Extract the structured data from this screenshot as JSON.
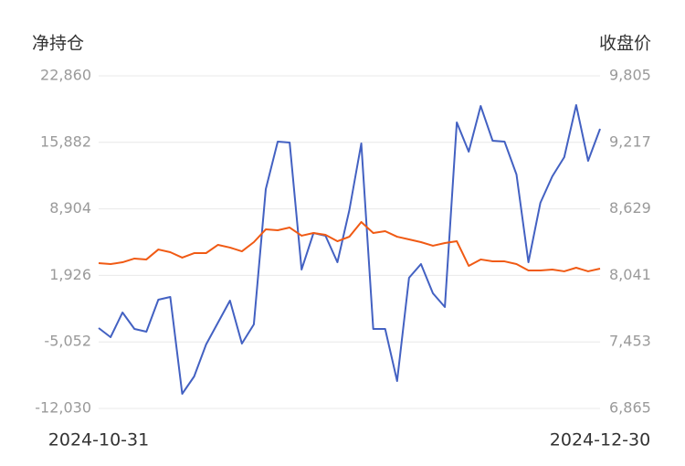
{
  "chart_data": {
    "type": "line",
    "y_label": "净持仓",
    "y2_label": "收盘价",
    "categories": [
      "2024-10-31",
      null,
      null,
      null,
      null,
      null,
      null,
      null,
      null,
      null,
      null,
      null,
      null,
      null,
      null,
      null,
      null,
      null,
      null,
      null,
      null,
      null,
      null,
      null,
      null,
      null,
      null,
      null,
      null,
      null,
      null,
      null,
      null,
      null,
      null,
      null,
      null,
      null,
      null,
      null,
      null,
      null,
      "2024-12-30"
    ],
    "series": [
      {
        "name": "净持仓",
        "color": "#4361c2",
        "axis": "y",
        "values": [
          -3595,
          -4553,
          -1965,
          -3690,
          -3978,
          -623,
          -336,
          -10496,
          -8675,
          -5320,
          -3020,
          -719,
          -5224,
          -3211,
          10975,
          15959,
          15863,
          2540,
          6374,
          6086,
          3307,
          8770,
          15767,
          -3690,
          -3690,
          -9154,
          1677,
          3115,
          48,
          -1390,
          17972,
          14904,
          19697,
          16055,
          15959,
          12508,
          3307,
          9537,
          12316,
          14329,
          19793,
          13946,
          17301
        ]
      },
      {
        "name": "收盘价",
        "color": "#f05a14",
        "axis": "y2",
        "values": [
          8149,
          8141,
          8157,
          8190,
          8182,
          8270,
          8246,
          8198,
          8238,
          8238,
          8311,
          8287,
          8254,
          8335,
          8448,
          8440,
          8464,
          8392,
          8416,
          8400,
          8343,
          8383,
          8513,
          8416,
          8432,
          8383,
          8359,
          8335,
          8303,
          8327,
          8343,
          8125,
          8182,
          8165,
          8165,
          8141,
          8085,
          8085,
          8093,
          8077,
          8109,
          8077,
          8101
        ]
      }
    ],
    "ylim": [
      -12030,
      22860
    ],
    "yticks": [
      {
        "value": -12030,
        "label": "-12,030"
      },
      {
        "value": -5052,
        "label": "-5,052"
      },
      {
        "value": 1926,
        "label": "1,926"
      },
      {
        "value": 8904,
        "label": "8,904"
      },
      {
        "value": 15882,
        "label": "15,882"
      },
      {
        "value": 22860,
        "label": "22,860"
      }
    ],
    "y2lim": [
      6865,
      9805
    ],
    "y2ticks": [
      {
        "value": 6865,
        "label": "6,865"
      },
      {
        "value": 7453,
        "label": "7,453"
      },
      {
        "value": 8041,
        "label": "8,041"
      },
      {
        "value": 8629,
        "label": "8,629"
      },
      {
        "value": 9217,
        "label": "9,217"
      },
      {
        "value": 9805,
        "label": "9,805"
      }
    ],
    "grid": true
  }
}
